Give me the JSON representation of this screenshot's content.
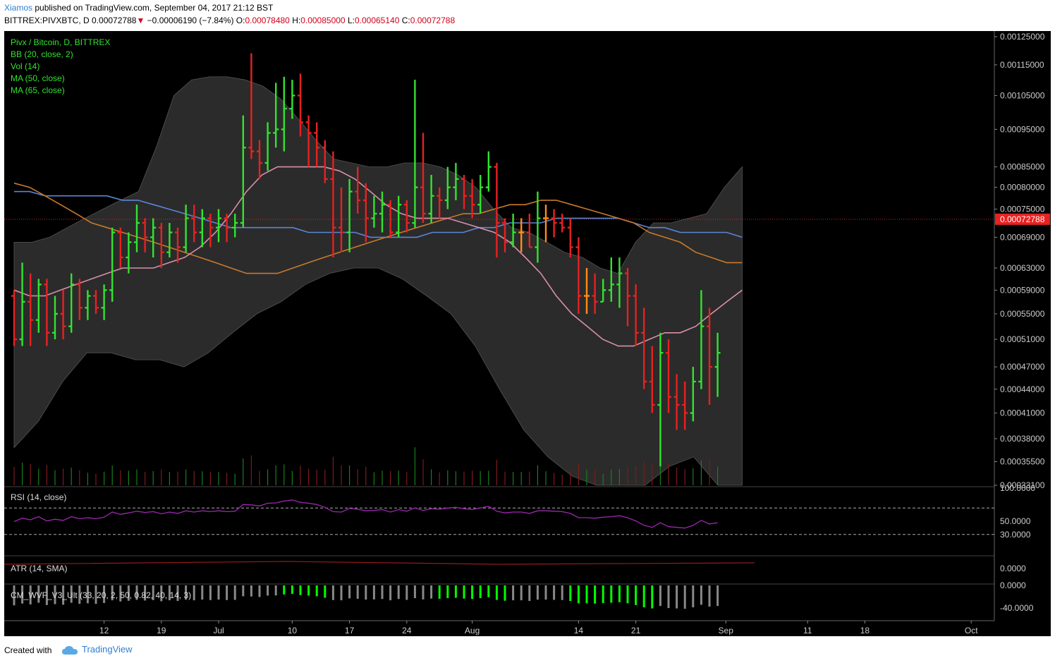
{
  "header": {
    "author": "Xiamos",
    "published_text": " published on TradingView.com, September 04, 2017 21:12 BST",
    "symbol": "BITTREX:PIVXBTC, D",
    "last": "0.00072788",
    "change": "−0.00006190 (−7.84%)",
    "o_label": "O:",
    "o": "0.00078480",
    "h_label": "H:",
    "h": "0.00085000",
    "l_label": "L:",
    "l": "0.00065140",
    "c_label": "C:",
    "c": "0.00072788"
  },
  "legend": [
    "Pivx / Bitcoin, D, BITTREX",
    "BB (20, close, 2)",
    "Vol (14)",
    "MA (50, close)",
    "MA (65, close)"
  ],
  "panes": {
    "rsi_label": "RSI (14, close)",
    "atr_label": "ATR (14, SMA)",
    "cm_label": "CM_WVF_V3_Ult (33, 20, 2, 50, 0.82, 40, 14, 3)"
  },
  "footer": {
    "created_with": "Created with",
    "brand": "TradingView"
  },
  "colors": {
    "up": "#32e32e",
    "down": "#e82121",
    "neutral": "#ff8c1a",
    "ma50": "#5b86d6",
    "ma65": "#c97a2a",
    "bb_basis": "#d98fa9",
    "rsi": "#9c27b0",
    "price_tag": "#e82121"
  },
  "chart_data": {
    "type": "ohlc",
    "main": {
      "yticks": [
        "0.00125000",
        "0.00115000",
        "0.00105000",
        "0.00095000",
        "0.00085000",
        "0.00080000",
        "0.00075000",
        "0.00069000",
        "0.00063000",
        "0.00059000",
        "0.00055000",
        "0.00051000",
        "0.00047000",
        "0.00044000",
        "0.00041000",
        "0.00038000",
        "0.00035500",
        "0.00033100"
      ],
      "last_price": "0.00072788",
      "ylim": [
        0.000331,
        0.00125
      ],
      "scale": "log",
      "xticks": [
        {
          "label": "12",
          "day": 11
        },
        {
          "label": "19",
          "day": 18
        },
        {
          "label": "Jul",
          "day": 25
        },
        {
          "label": "10",
          "day": 34
        },
        {
          "label": "17",
          "day": 41
        },
        {
          "label": "24",
          "day": 48
        },
        {
          "label": "Aug",
          "day": 56
        },
        {
          "label": "14",
          "day": 69
        },
        {
          "label": "21",
          "day": 76
        },
        {
          "label": "Sep",
          "day": 87
        },
        {
          "label": "11",
          "day": 97
        },
        {
          "label": "18",
          "day": 104
        },
        {
          "label": "Oct",
          "day": 117
        }
      ],
      "ohlc": [
        [
          0.00058,
          0.00059,
          0.0005,
          0.00051
        ],
        [
          0.00051,
          0.00064,
          0.0005,
          0.00057
        ],
        [
          0.00057,
          0.00062,
          0.0005,
          0.00054
        ],
        [
          0.00054,
          0.00061,
          0.00052,
          0.0006
        ],
        [
          0.0006,
          0.00061,
          0.0005,
          0.00052
        ],
        [
          0.00052,
          0.00058,
          0.00051,
          0.00055
        ],
        [
          0.00055,
          0.00059,
          0.00051,
          0.00053
        ],
        [
          0.00053,
          0.00062,
          0.00052,
          0.0006
        ],
        [
          0.0006,
          0.00061,
          0.00054,
          0.00056
        ],
        [
          0.00056,
          0.00059,
          0.00054,
          0.00058
        ],
        [
          0.00058,
          0.00059,
          0.00055,
          0.00056
        ],
        [
          0.00056,
          0.0006,
          0.00054,
          0.00059
        ],
        [
          0.00059,
          0.00071,
          0.00057,
          0.0007
        ],
        [
          0.0007,
          0.00071,
          0.00063,
          0.00065
        ],
        [
          0.00065,
          0.0007,
          0.00062,
          0.00068
        ],
        [
          0.00068,
          0.00076,
          0.00066,
          0.00072
        ],
        [
          0.00072,
          0.00073,
          0.00066,
          0.00069
        ],
        [
          0.00069,
          0.00073,
          0.00065,
          0.00071
        ],
        [
          0.00071,
          0.00072,
          0.00063,
          0.00066
        ],
        [
          0.00066,
          0.00072,
          0.00065,
          0.0007
        ],
        [
          0.0007,
          0.00071,
          0.00064,
          0.00067
        ],
        [
          0.00067,
          0.00076,
          0.00066,
          0.00073
        ],
        [
          0.00073,
          0.00076,
          0.00068,
          0.0007
        ],
        [
          0.0007,
          0.00075,
          0.00067,
          0.00073
        ],
        [
          0.00073,
          0.00074,
          0.00067,
          0.00071
        ],
        [
          0.00071,
          0.00075,
          0.00068,
          0.00073
        ],
        [
          0.00073,
          0.00074,
          0.00068,
          0.00071
        ],
        [
          0.00071,
          0.00074,
          0.00069,
          0.00072
        ],
        [
          0.00072,
          0.00099,
          0.00071,
          0.0009
        ],
        [
          0.0009,
          0.00119,
          0.00087,
          0.00089
        ],
        [
          0.00089,
          0.00092,
          0.00082,
          0.00086
        ],
        [
          0.00086,
          0.00097,
          0.00084,
          0.00094
        ],
        [
          0.00094,
          0.00109,
          0.0009,
          0.00095
        ],
        [
          0.00095,
          0.00111,
          0.00089,
          0.00101
        ],
        [
          0.00101,
          0.0011,
          0.00098,
          0.00105
        ],
        [
          0.00105,
          0.00112,
          0.00093,
          0.00097
        ],
        [
          0.00097,
          0.00099,
          0.00085,
          0.00094
        ],
        [
          0.00094,
          0.00097,
          0.00085,
          0.0009
        ],
        [
          0.0009,
          0.00092,
          0.00081,
          0.00082
        ],
        [
          0.00082,
          0.00089,
          0.00065,
          0.00071
        ],
        [
          0.00071,
          0.0008,
          0.00066,
          0.0007
        ],
        [
          0.0007,
          0.00082,
          0.00066,
          0.00079
        ],
        [
          0.00079,
          0.00085,
          0.00074,
          0.00077
        ],
        [
          0.00077,
          0.00081,
          0.00068,
          0.00073
        ],
        [
          0.00073,
          0.00078,
          0.00071,
          0.00074
        ],
        [
          0.00074,
          0.00079,
          0.0007,
          0.00076
        ],
        [
          0.00076,
          0.00077,
          0.00069,
          0.0007
        ],
        [
          0.0007,
          0.00078,
          0.00069,
          0.00076
        ],
        [
          0.00076,
          0.00077,
          0.0007,
          0.00072
        ],
        [
          0.00072,
          0.0011,
          0.00071,
          0.0008
        ],
        [
          0.0008,
          0.00094,
          0.00072,
          0.00074
        ],
        [
          0.00074,
          0.00083,
          0.00072,
          0.00078
        ],
        [
          0.00078,
          0.0008,
          0.00073,
          0.00077
        ],
        [
          0.00077,
          0.00085,
          0.00075,
          0.0008
        ],
        [
          0.0008,
          0.00086,
          0.00077,
          0.00082
        ],
        [
          0.00082,
          0.00083,
          0.00075,
          0.00078
        ],
        [
          0.00078,
          0.00082,
          0.00073,
          0.00076
        ],
        [
          0.00076,
          0.00083,
          0.00074,
          0.0008
        ],
        [
          0.0008,
          0.00089,
          0.00079,
          0.00085
        ],
        [
          0.00085,
          0.00086,
          0.00065,
          0.00072
        ],
        [
          0.00072,
          0.00073,
          0.00066,
          0.00068
        ],
        [
          0.00068,
          0.00074,
          0.00067,
          0.0007
        ],
        [
          0.0007,
          0.00073,
          0.00066,
          0.0007
        ],
        [
          0.0007,
          0.00074,
          0.00067,
          0.00067
        ],
        [
          0.00067,
          0.00079,
          0.00064,
          0.00073
        ],
        [
          0.00073,
          0.00076,
          0.00068,
          0.00073
        ],
        [
          0.00073,
          0.00075,
          0.00069,
          0.00072
        ],
        [
          0.00072,
          0.00074,
          0.0007,
          0.00071
        ],
        [
          0.00071,
          0.00073,
          0.00065,
          0.00067
        ],
        [
          0.00067,
          0.00069,
          0.00055,
          0.00058
        ],
        [
          0.00058,
          0.00063,
          0.00055,
          0.00058
        ],
        [
          0.00058,
          0.00062,
          0.00055,
          0.00057
        ],
        [
          0.00057,
          0.00061,
          0.00057,
          0.00059
        ],
        [
          0.00059,
          0.00065,
          0.00057,
          0.0006
        ],
        [
          0.0006,
          0.00065,
          0.00056,
          0.00062
        ],
        [
          0.00062,
          0.00063,
          0.00053,
          0.00058
        ],
        [
          0.00058,
          0.0006,
          0.0005,
          0.00052
        ],
        [
          0.00052,
          0.00056,
          0.00044,
          0.00045
        ],
        [
          0.00045,
          0.0005,
          0.00041,
          0.00042
        ],
        [
          0.00042,
          0.00052,
          0.00035,
          0.00049
        ],
        [
          0.00049,
          0.00051,
          0.00041,
          0.00043
        ],
        [
          0.00043,
          0.00046,
          0.00039,
          0.00042
        ],
        [
          0.00042,
          0.00045,
          0.00039,
          0.00041
        ],
        [
          0.00041,
          0.00047,
          0.0004,
          0.00045
        ],
        [
          0.00045,
          0.00059,
          0.00044,
          0.00053
        ],
        [
          0.00053,
          0.00056,
          0.00042,
          0.00047
        ],
        [
          0.00047,
          0.00052,
          0.00043,
          0.00049
        ]
      ],
      "ma50": [
        0.00079,
        0.00079,
        0.00078,
        0.00078,
        0.00078,
        0.00078,
        0.00078,
        0.00077,
        0.00077,
        0.00076,
        0.00075,
        0.00074,
        0.00073,
        0.00072,
        0.00071,
        0.00071,
        0.00071,
        0.00071,
        0.00071,
        0.0007,
        0.0007,
        0.0007,
        0.0007,
        0.00069,
        0.00069,
        0.00069,
        0.00069,
        0.0007,
        0.0007,
        0.0007,
        0.00071,
        0.00071,
        0.00072,
        0.00072,
        0.00072,
        0.00073,
        0.00073,
        0.00073,
        0.00073,
        0.00073,
        0.00072,
        0.00071,
        0.00071,
        0.0007,
        0.0007,
        0.0007,
        0.0007,
        0.00069
      ],
      "ma65": [
        0.00081,
        0.0008,
        0.00078,
        0.00076,
        0.00074,
        0.00072,
        0.00071,
        0.0007,
        0.00069,
        0.00068,
        0.00067,
        0.00066,
        0.00065,
        0.00064,
        0.00063,
        0.00062,
        0.00062,
        0.00062,
        0.00063,
        0.00064,
        0.00065,
        0.00066,
        0.00067,
        0.00068,
        0.00069,
        0.0007,
        0.00071,
        0.00072,
        0.00073,
        0.00074,
        0.00074,
        0.00075,
        0.00076,
        0.00076,
        0.00077,
        0.00077,
        0.00076,
        0.00075,
        0.00074,
        0.00073,
        0.00072,
        0.0007,
        0.00069,
        0.00068,
        0.00066,
        0.00065,
        0.00064,
        0.00064
      ],
      "bb_basis": [
        0.00059,
        0.00058,
        0.00058,
        0.00059,
        0.0006,
        0.00061,
        0.00062,
        0.00063,
        0.00063,
        0.00063,
        0.00064,
        0.00065,
        0.00067,
        0.0007,
        0.00074,
        0.00079,
        0.00083,
        0.00085,
        0.00085,
        0.00085,
        0.00085,
        0.00084,
        0.00082,
        0.00079,
        0.00076,
        0.00074,
        0.00073,
        0.00073,
        0.00073,
        0.00072,
        0.00071,
        0.0007,
        0.00068,
        0.00065,
        0.00062,
        0.00058,
        0.00055,
        0.00053,
        0.00051,
        0.0005,
        0.0005,
        0.00051,
        0.00052,
        0.00052,
        0.00053,
        0.00055,
        0.00057,
        0.00059
      ],
      "bb_upper": [
        0.00068,
        0.00068,
        0.00069,
        0.00071,
        0.00073,
        0.00075,
        0.00077,
        0.00079,
        0.0009,
        0.00105,
        0.0011,
        0.00111,
        0.00111,
        0.0011,
        0.00108,
        0.00104,
        0.00098,
        0.00092,
        0.00087,
        0.00086,
        0.00085,
        0.00085,
        0.00086,
        0.00086,
        0.00085,
        0.00083,
        0.0008,
        0.00075,
        0.00071,
        0.0007,
        0.00068,
        0.00066,
        0.00065,
        0.00063,
        0.00062,
        0.00068,
        0.00072,
        0.00072,
        0.00073,
        0.00074,
        0.0008,
        0.00085
      ],
      "bb_lower": [
        0.00037,
        0.0004,
        0.00045,
        0.00049,
        0.00049,
        0.00048,
        0.00048,
        0.00047,
        0.00049,
        0.00052,
        0.00055,
        0.00057,
        0.0006,
        0.00062,
        0.00063,
        0.00063,
        0.00061,
        0.00058,
        0.00055,
        0.0005,
        0.00044,
        0.00039,
        0.00036,
        0.00034,
        0.00033,
        0.00033,
        0.00033,
        0.00035,
        0.00036,
        0.00033,
        0.00033
      ]
    },
    "rsi": {
      "yticks": [
        "100.0000",
        "50.0000",
        "30.0000"
      ],
      "ylim": [
        0,
        100
      ],
      "levels": [
        70,
        30
      ]
    },
    "atr": {
      "yticks": [
        "0.0000"
      ]
    },
    "cm_wvf": {
      "yticks": [
        "0.0000",
        "-40.0000"
      ]
    }
  }
}
